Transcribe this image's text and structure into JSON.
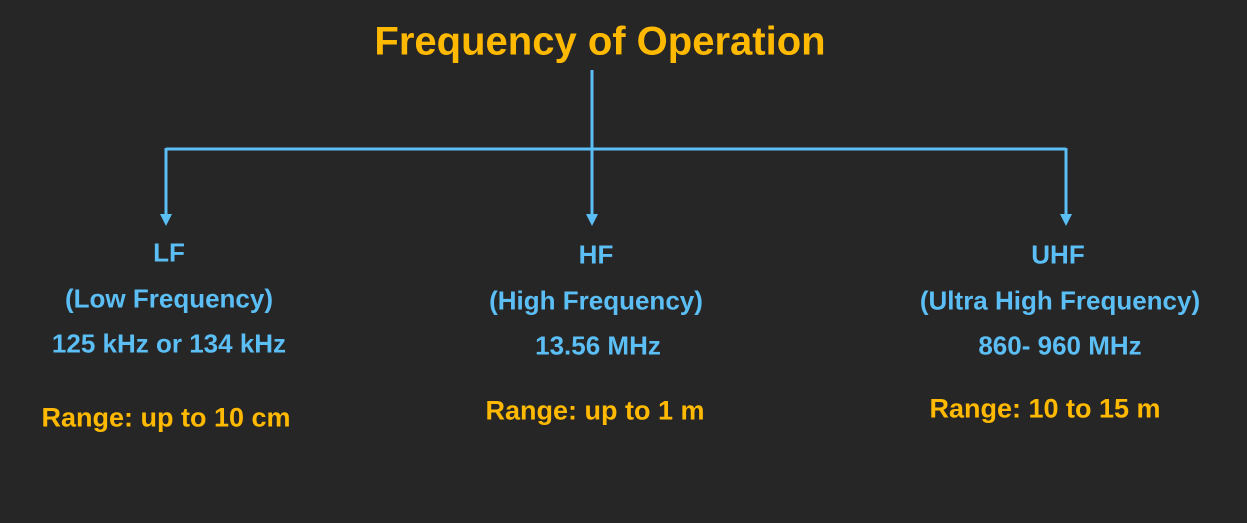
{
  "title": "Frequency of Operation",
  "colors": {
    "background": "#262626",
    "title": "#FFB900",
    "branch_text": "#5BBEF5",
    "range_text": "#FFB900",
    "connector": "#5BBEF5"
  },
  "branches": [
    {
      "band": "LF",
      "name": "(Low Frequency)",
      "frequency": "125 kHz or 134 kHz",
      "range": "Range: up to 10 cm"
    },
    {
      "band": "HF",
      "name": "(High Frequency)",
      "frequency": "13.56 MHz",
      "range": "Range: up to 1 m"
    },
    {
      "band": "UHF",
      "name": "(Ultra High Frequency)",
      "frequency": "860- 960 MHz",
      "range": "Range: 10 to 15 m"
    }
  ]
}
